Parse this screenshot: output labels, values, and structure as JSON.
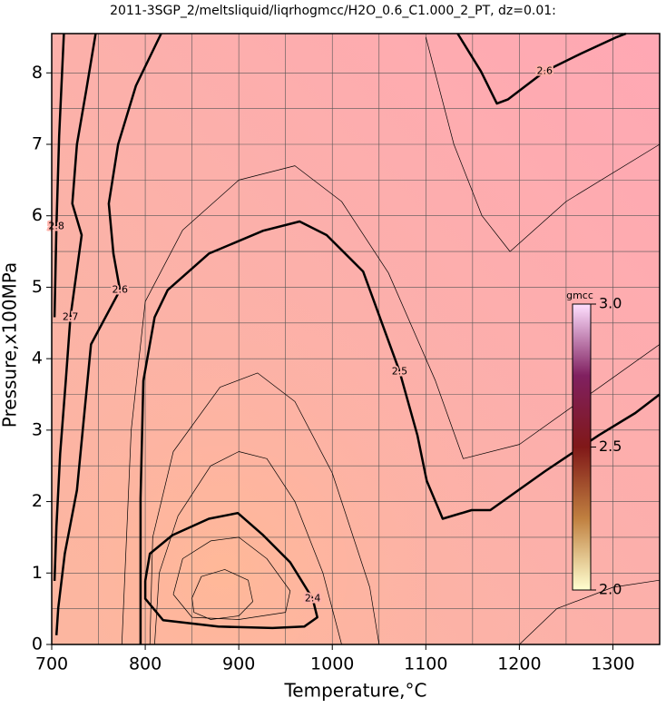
{
  "chart_data": {
    "type": "contour",
    "title": "2011-3SGP_2/meltsliquid/liqrhogmcc/H2O_0.6_C1.000_2_PT, dz=0.01:",
    "x_label": "Temperature,°C",
    "y_label": "Pressure,x100MPa",
    "xlim": [
      700,
      1350
    ],
    "ylim": [
      0,
      8.55
    ],
    "xticks": [
      700,
      800,
      900,
      1000,
      1100,
      1200,
      1300
    ],
    "yticks": [
      0,
      1,
      2,
      3,
      4,
      5,
      6,
      7,
      8
    ],
    "x_minor_grid": [
      750,
      850,
      950,
      1050,
      1150,
      1250
    ],
    "y_minor_grid": [
      0.5,
      1.5,
      2.5,
      3.5,
      4.5,
      5.5,
      6.5,
      7.5
    ],
    "grid": true,
    "contours": [
      {
        "level": 2.4,
        "x": [
          800,
          805,
          829,
          868,
          899,
          926,
          955,
          979,
          984,
          970,
          936,
          878,
          819,
          800,
          800
        ],
        "y": [
          0.89,
          1.27,
          1.53,
          1.76,
          1.84,
          1.53,
          1.15,
          0.64,
          0.38,
          0.25,
          0.23,
          0.25,
          0.34,
          0.64,
          0.89
        ]
      },
      {
        "level": 2.5,
        "x": [
          795,
          795,
          798,
          810,
          824,
          868,
          926,
          965,
          994,
          1033,
          1072,
          1091,
          1101,
          1118,
          1149,
          1169,
          1227,
          1285,
          1324,
          1350
        ],
        "y": [
          0,
          2.04,
          3.69,
          4.58,
          4.96,
          5.47,
          5.79,
          5.92,
          5.73,
          5.22,
          3.82,
          2.93,
          2.29,
          1.76,
          1.88,
          1.88,
          2.42,
          2.93,
          3.24,
          3.5
        ]
      },
      {
        "level": 2.6,
        "x": [
          1134,
          1159,
          1176,
          1188,
          1227,
          1266,
          1304,
          1314
        ],
        "y": [
          8.55,
          8.02,
          7.57,
          7.63,
          8.02,
          8.27,
          8.5,
          8.55
        ]
      },
      {
        "level": 2.6,
        "x": [
          817,
          790,
          771,
          761,
          766,
          773,
          742,
          727,
          714,
          707,
          705
        ],
        "y": [
          8.55,
          7.82,
          7.0,
          6.17,
          5.47,
          4.96,
          4.2,
          2.16,
          1.27,
          0.51,
          0.13
        ]
      },
      {
        "level": 2.7,
        "x": [
          747,
          737,
          727,
          722,
          732,
          720,
          715,
          709,
          705,
          703
        ],
        "y": [
          8.55,
          7.76,
          7.0,
          6.17,
          5.73,
          4.58,
          3.69,
          2.67,
          1.65,
          0.89
        ]
      },
      {
        "level": 2.8,
        "x": [
          713,
          708,
          705,
          703
        ],
        "y": [
          8.55,
          7.12,
          5.85,
          4.58
        ]
      }
    ],
    "minor_contours": [
      {
        "level": 2.39,
        "x": [
          850,
          860,
          885,
          910,
          915,
          900,
          870,
          852,
          850
        ],
        "y": [
          0.65,
          0.95,
          1.05,
          0.9,
          0.6,
          0.4,
          0.35,
          0.45,
          0.65
        ]
      },
      {
        "level": 2.41,
        "x": [
          830,
          840,
          870,
          900,
          930,
          955,
          950,
          900,
          850,
          830
        ],
        "y": [
          0.7,
          1.2,
          1.45,
          1.5,
          1.2,
          0.75,
          0.45,
          0.35,
          0.38,
          0.7
        ]
      },
      {
        "level": 2.45,
        "x": [
          810,
          815,
          835,
          870,
          900,
          930,
          960,
          990,
          1010
        ],
        "y": [
          0,
          1.0,
          1.8,
          2.5,
          2.7,
          2.6,
          2.0,
          1.0,
          0
        ]
      },
      {
        "level": 2.47,
        "x": [
          805,
          808,
          830,
          880,
          920,
          960,
          1000,
          1040,
          1050
        ],
        "y": [
          0,
          1.5,
          2.7,
          3.6,
          3.8,
          3.4,
          2.4,
          0.8,
          0
        ]
      },
      {
        "level": 2.55,
        "x": [
          775,
          785,
          800,
          840,
          900,
          960,
          1010,
          1060,
          1110,
          1140,
          1200,
          1350
        ],
        "y": [
          0,
          3,
          4.8,
          5.8,
          6.5,
          6.7,
          6.2,
          5.2,
          3.7,
          2.6,
          2.8,
          4.2
        ]
      },
      {
        "level": 2.58,
        "x": [
          1100,
          1130,
          1160,
          1190,
          1250,
          1350
        ],
        "y": [
          8.5,
          7.0,
          6.0,
          5.5,
          6.2,
          7.0
        ]
      },
      {
        "level": 2.45,
        "x": [
          1200,
          1240,
          1300,
          1350
        ],
        "y": [
          0,
          0.5,
          0.8,
          0.9
        ]
      }
    ],
    "colorbar": {
      "label": "gmcc",
      "lim": [
        2,
        3
      ],
      "ticks": [
        {
          "value": 2,
          "label": "2.0"
        },
        2.5,
        {
          "value": 3,
          "label": "3.0"
        }
      ],
      "colors": [
        "#ffffd0",
        "#c08040",
        "#801818",
        "#802060",
        "#ffe0ff"
      ]
    }
  }
}
